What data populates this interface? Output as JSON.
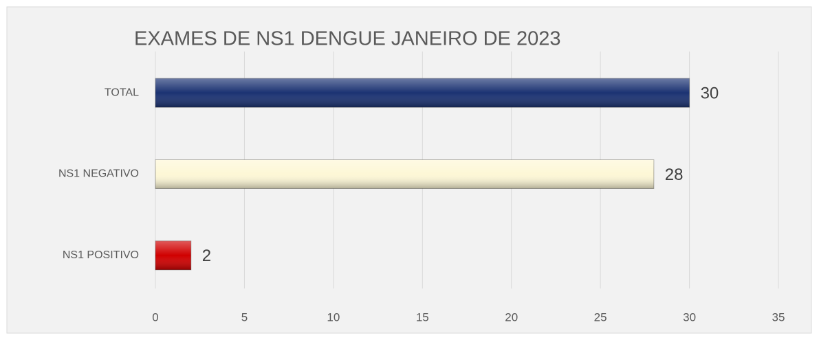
{
  "chart_data": {
    "type": "bar",
    "orientation": "horizontal",
    "title": "EXAMES DE NS1 DENGUE JANEIRO DE 2023",
    "categories": [
      "TOTAL",
      "NS1 NEGATIVO",
      "NS1 POSITIVO"
    ],
    "values": [
      30,
      28,
      2
    ],
    "colors": [
      "#1b3272",
      "#fdf7d6",
      "#d00000"
    ],
    "xlim": [
      0,
      35
    ],
    "xticks": [
      0,
      5,
      10,
      15,
      20,
      25,
      30,
      35
    ],
    "grid": true
  }
}
